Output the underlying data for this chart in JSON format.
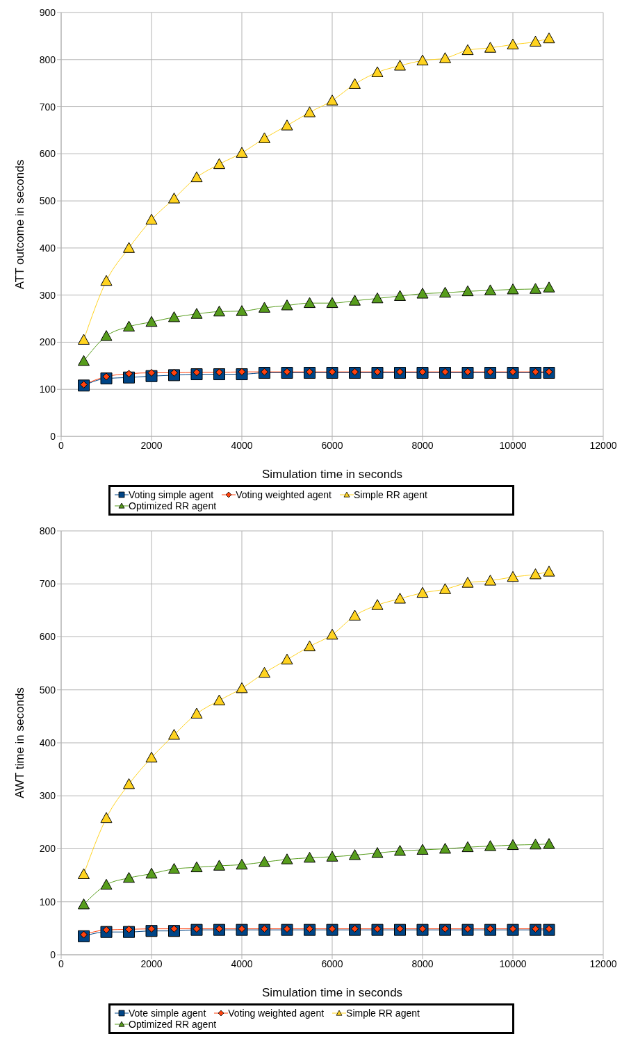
{
  "chart_data": [
    {
      "type": "line",
      "xlabel": "Simulation time in seconds",
      "ylabel": "ATT outcome in seconds",
      "x": [
        500,
        1000,
        1500,
        2000,
        2500,
        3000,
        3500,
        4000,
        4500,
        5000,
        5500,
        6000,
        6500,
        7000,
        7500,
        8000,
        8500,
        9000,
        9500,
        10000,
        10500,
        10800
      ],
      "xlim": [
        0,
        12000
      ],
      "xticks": [
        0,
        2000,
        4000,
        6000,
        8000,
        10000,
        12000
      ],
      "ylim": [
        0,
        900
      ],
      "yticks": [
        0,
        100,
        200,
        300,
        400,
        500,
        600,
        700,
        800,
        900
      ],
      "grid": true,
      "legend": "bottom",
      "series": [
        {
          "name": "Voting simple agent",
          "color": "#004586",
          "marker": "square",
          "values": [
            108,
            123,
            125,
            128,
            130,
            132,
            132,
            132,
            135,
            135,
            135,
            135,
            135,
            135,
            135,
            135,
            135,
            135,
            135,
            135,
            135,
            135
          ]
        },
        {
          "name": "Voting weighted agent",
          "color": "#ff420e",
          "marker": "diamond",
          "values": [
            110,
            127,
            133,
            135,
            135,
            136,
            136,
            137,
            137,
            137,
            137,
            137,
            137,
            137,
            137,
            137,
            137,
            137,
            137,
            137,
            137,
            137
          ]
        },
        {
          "name": "Simple RR agent",
          "color": "#ffd320",
          "marker": "triangle",
          "values": [
            205,
            330,
            400,
            460,
            505,
            550,
            578,
            602,
            633,
            660,
            688,
            713,
            748,
            773,
            787,
            798,
            803,
            820,
            825,
            832,
            838,
            845
          ]
        },
        {
          "name": "Optimized RR agent",
          "color": "#579d1c",
          "marker": "triangle",
          "values": [
            160,
            213,
            233,
            243,
            253,
            260,
            265,
            266,
            273,
            278,
            283,
            283,
            288,
            293,
            298,
            303,
            305,
            308,
            310,
            312,
            313,
            316
          ]
        }
      ]
    },
    {
      "type": "line",
      "xlabel": "Simulation time in seconds",
      "ylabel": "AWT time in seconds",
      "x": [
        500,
        1000,
        1500,
        2000,
        2500,
        3000,
        3500,
        4000,
        4500,
        5000,
        5500,
        6000,
        6500,
        7000,
        7500,
        8000,
        8500,
        9000,
        9500,
        10000,
        10500,
        10800
      ],
      "xlim": [
        0,
        12000
      ],
      "xticks": [
        0,
        2000,
        4000,
        6000,
        8000,
        10000,
        12000
      ],
      "ylim": [
        0,
        800
      ],
      "yticks": [
        0,
        100,
        200,
        300,
        400,
        500,
        600,
        700,
        800
      ],
      "grid": true,
      "legend": "bottom",
      "series": [
        {
          "name": "Vote simple agent",
          "color": "#004586",
          "marker": "square",
          "values": [
            35,
            43,
            43,
            45,
            45,
            47,
            47,
            47,
            47,
            47,
            47,
            47,
            47,
            47,
            47,
            47,
            47,
            47,
            47,
            47,
            47,
            47
          ]
        },
        {
          "name": "Voting weighted agent",
          "color": "#ff420e",
          "marker": "diamond",
          "values": [
            38,
            47,
            48,
            49,
            49,
            49,
            49,
            49,
            49,
            49,
            49,
            49,
            49,
            49,
            49,
            49,
            49,
            49,
            49,
            49,
            49,
            49
          ]
        },
        {
          "name": "Simple RR agent",
          "color": "#ffd320",
          "marker": "triangle",
          "values": [
            152,
            258,
            322,
            372,
            415,
            455,
            480,
            503,
            532,
            557,
            582,
            604,
            640,
            660,
            672,
            683,
            690,
            702,
            706,
            713,
            718,
            723
          ]
        },
        {
          "name": "Optimized RR agent",
          "color": "#579d1c",
          "marker": "triangle",
          "values": [
            95,
            132,
            145,
            153,
            162,
            165,
            168,
            170,
            175,
            180,
            183,
            185,
            188,
            192,
            196,
            198,
            200,
            203,
            205,
            207,
            208,
            209
          ]
        }
      ]
    }
  ]
}
